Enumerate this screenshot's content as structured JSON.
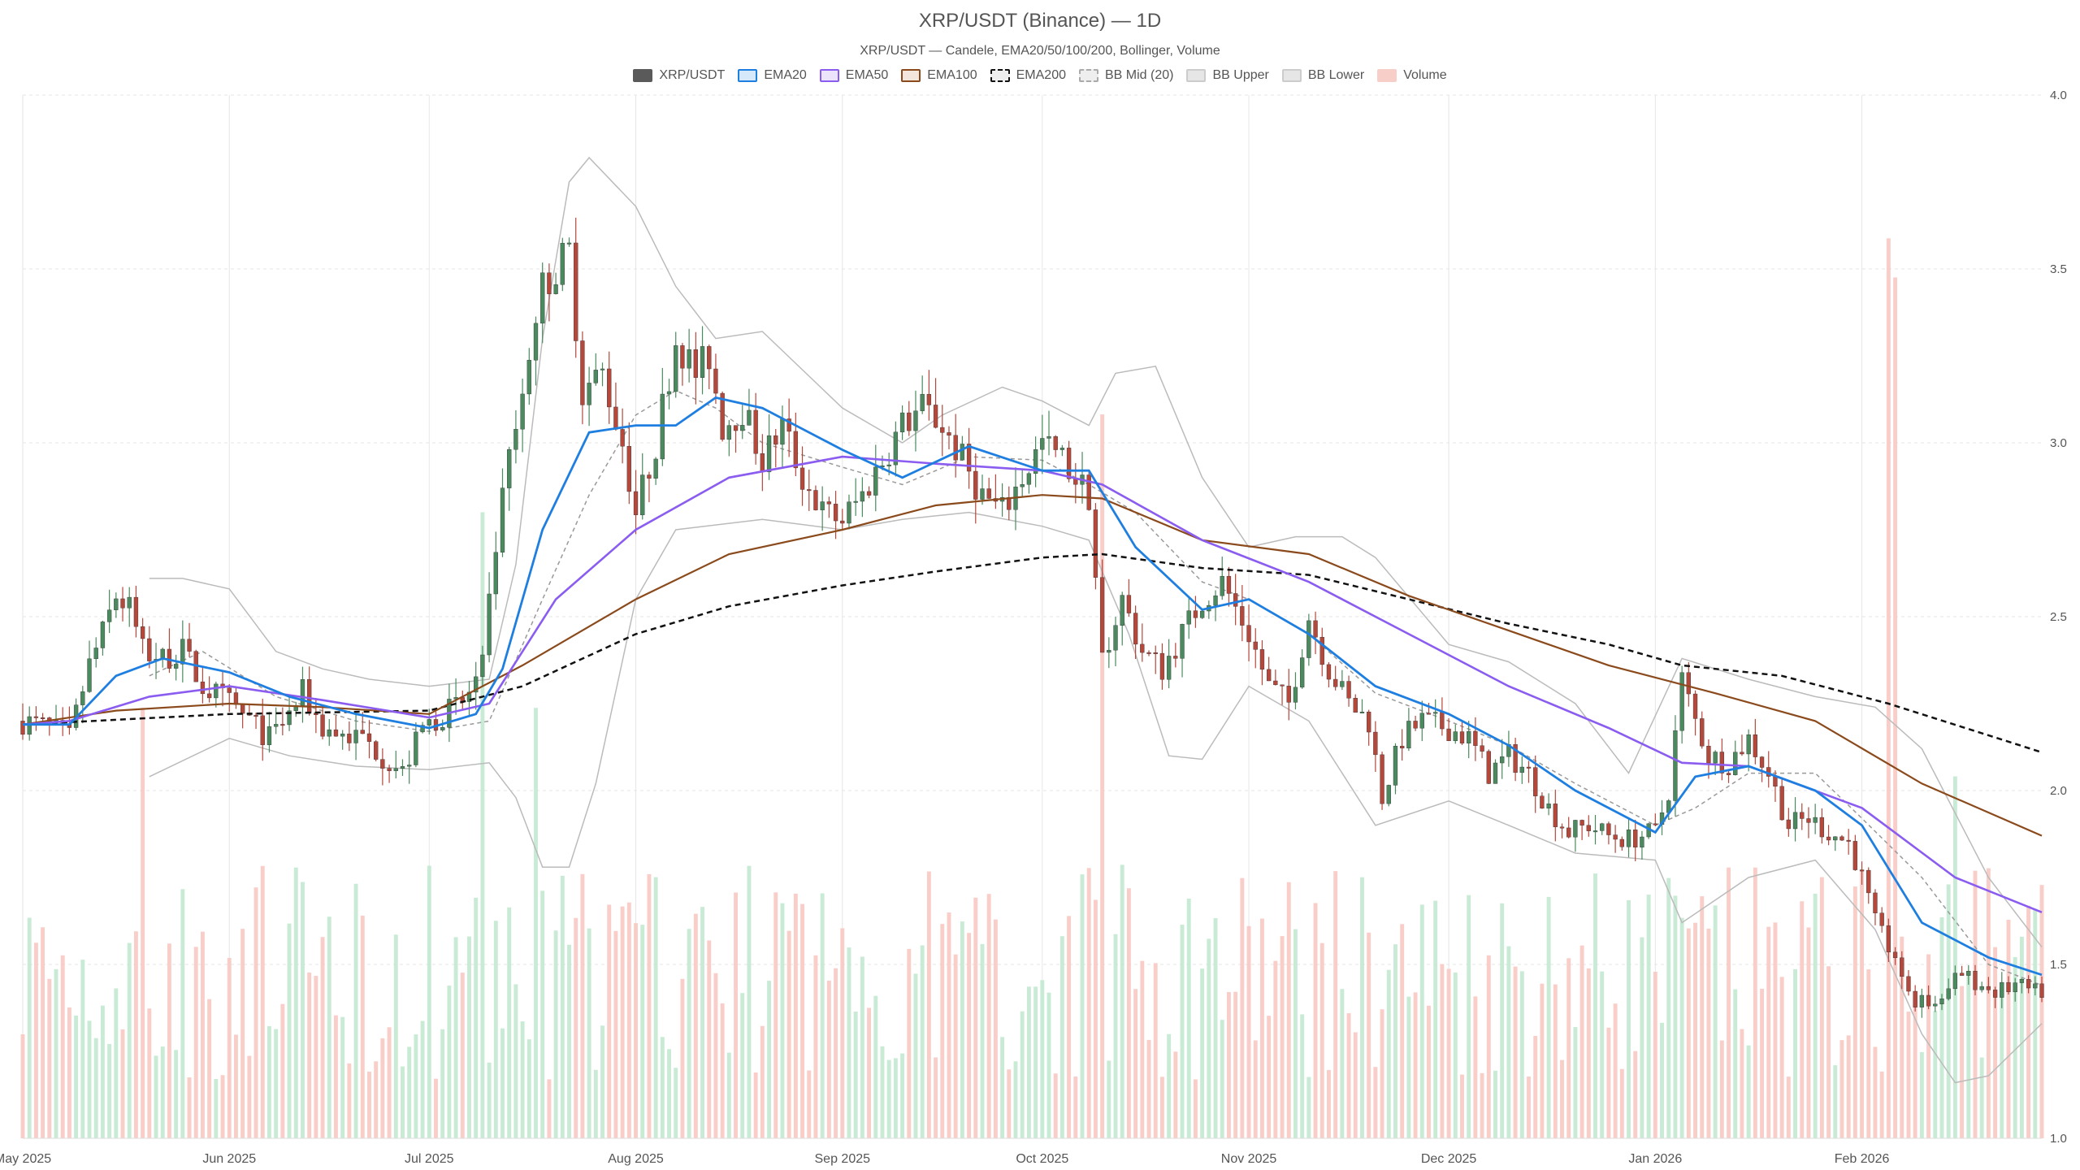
{
  "title": "XRP/USDT (Binance) — 1D",
  "subtitle": "XRP/USDT — Candele, EMA20/50/100/200, Bollinger, Volume",
  "legend": [
    {
      "label": "XRP/USDT",
      "fill": "#5a5a5a",
      "border": "#5a5a5a",
      "dashed": false
    },
    {
      "label": "EMA20",
      "fill": "#d6e9fb",
      "border": "#1f7fe0",
      "dashed": false
    },
    {
      "label": "EMA50",
      "fill": "#ece4fb",
      "border": "#8a5cf0",
      "dashed": false
    },
    {
      "label": "EMA100",
      "fill": "#f3e7dd",
      "border": "#8b4a1c",
      "dashed": false
    },
    {
      "label": "EMA200",
      "fill": "#eeeeee",
      "border": "#111111",
      "dashed": true
    },
    {
      "label": "BB Mid (20)",
      "fill": "#eeeeee",
      "border": "#aaaaaa",
      "dashed": true
    },
    {
      "label": "BB Upper",
      "fill": "#e6e6e6",
      "border": "#cccccc",
      "dashed": false
    },
    {
      "label": "BB Lower",
      "fill": "#e6e6e6",
      "border": "#cccccc",
      "dashed": false
    },
    {
      "label": "Volume",
      "fill": "#f8cfc8",
      "border": "#f8cfc8",
      "dashed": false
    }
  ],
  "chart_data": {
    "type": "candlestick",
    "x_range": [
      "2025-05-01",
      "2026-02-28"
    ],
    "x_tick_labels": [
      "May 2025",
      "Jun 2025",
      "Jul 2025",
      "Aug 2025",
      "Sep 2025",
      "Oct 2025",
      "Nov 2025",
      "Dec 2025",
      "Jan 2026",
      "Feb 2026"
    ],
    "x_tick_dates": [
      "2025-05-01",
      "2025-06-01",
      "2025-07-01",
      "2025-08-01",
      "2025-09-01",
      "2025-10-01",
      "2025-11-01",
      "2025-12-01",
      "2026-01-01",
      "2026-02-01"
    ],
    "ylim": [
      1.0,
      4.0
    ],
    "y_ticks": [
      "1.0",
      "1.5",
      "2.0",
      "2.5",
      "3.0",
      "3.5",
      "4.0"
    ],
    "y_axis_side": "right",
    "grid": true,
    "legend_position": "top-center",
    "colors": {
      "up": "#4a8a5e",
      "down": "#b5473b",
      "up_volume": "#bfe8cf",
      "down_volume": "#f8c6bf",
      "ema20": "#1f7fe0",
      "ema50": "#8a5cf0",
      "ema100": "#8b4a1c",
      "ema200": "#111111",
      "bb_mid": "#999999",
      "bb_band": "#bbbbbb"
    },
    "close_path": [
      [
        "2025-05-01",
        2.2
      ],
      [
        "2025-05-05",
        2.18
      ],
      [
        "2025-05-08",
        2.15
      ],
      [
        "2025-05-11",
        2.36
      ],
      [
        "2025-05-13",
        2.45
      ],
      [
        "2025-05-15",
        2.56
      ],
      [
        "2025-05-17",
        2.52
      ],
      [
        "2025-05-19",
        2.4
      ],
      [
        "2025-05-22",
        2.38
      ],
      [
        "2025-05-25",
        2.4
      ],
      [
        "2025-05-28",
        2.3
      ],
      [
        "2025-06-01",
        2.25
      ],
      [
        "2025-06-04",
        2.2
      ],
      [
        "2025-06-07",
        2.15
      ],
      [
        "2025-06-10",
        2.22
      ],
      [
        "2025-06-12",
        2.28
      ],
      [
        "2025-06-15",
        2.18
      ],
      [
        "2025-06-18",
        2.16
      ],
      [
        "2025-06-21",
        2.15
      ],
      [
        "2025-06-24",
        2.1
      ],
      [
        "2025-06-27",
        2.05
      ],
      [
        "2025-06-30",
        2.18
      ],
      [
        "2025-07-03",
        2.22
      ],
      [
        "2025-07-06",
        2.25
      ],
      [
        "2025-07-09",
        2.35
      ],
      [
        "2025-07-11",
        2.7
      ],
      [
        "2025-07-13",
        2.95
      ],
      [
        "2025-07-15",
        3.1
      ],
      [
        "2025-07-18",
        3.45
      ],
      [
        "2025-07-20",
        3.5
      ],
      [
        "2025-07-22",
        3.55
      ],
      [
        "2025-07-24",
        3.15
      ],
      [
        "2025-07-27",
        3.2
      ],
      [
        "2025-07-30",
        3.0
      ],
      [
        "2025-08-01",
        2.8
      ],
      [
        "2025-08-04",
        3.0
      ],
      [
        "2025-08-07",
        3.3
      ],
      [
        "2025-08-10",
        3.2
      ],
      [
        "2025-08-12",
        3.25
      ],
      [
        "2025-08-14",
        3.05
      ],
      [
        "2025-08-17",
        3.1
      ],
      [
        "2025-08-20",
        2.95
      ],
      [
        "2025-08-23",
        3.05
      ],
      [
        "2025-08-26",
        2.9
      ],
      [
        "2025-08-29",
        2.8
      ],
      [
        "2025-09-01",
        2.78
      ],
      [
        "2025-09-04",
        2.85
      ],
      [
        "2025-09-07",
        2.95
      ],
      [
        "2025-09-10",
        3.05
      ],
      [
        "2025-09-13",
        3.1
      ],
      [
        "2025-09-16",
        3.05
      ],
      [
        "2025-09-19",
        2.95
      ],
      [
        "2025-09-22",
        2.85
      ],
      [
        "2025-09-25",
        2.8
      ],
      [
        "2025-09-28",
        2.9
      ],
      [
        "2025-10-01",
        3.0
      ],
      [
        "2025-10-04",
        2.95
      ],
      [
        "2025-10-06",
        2.9
      ],
      [
        "2025-10-08",
        2.85
      ],
      [
        "2025-10-10",
        2.38
      ],
      [
        "2025-10-13",
        2.55
      ],
      [
        "2025-10-16",
        2.4
      ],
      [
        "2025-10-19",
        2.35
      ],
      [
        "2025-10-22",
        2.45
      ],
      [
        "2025-10-25",
        2.55
      ],
      [
        "2025-10-28",
        2.6
      ],
      [
        "2025-11-01",
        2.45
      ],
      [
        "2025-11-04",
        2.3
      ],
      [
        "2025-11-07",
        2.25
      ],
      [
        "2025-11-10",
        2.5
      ],
      [
        "2025-11-13",
        2.35
      ],
      [
        "2025-11-16",
        2.25
      ],
      [
        "2025-11-19",
        2.2
      ],
      [
        "2025-11-21",
        1.98
      ],
      [
        "2025-11-24",
        2.15
      ],
      [
        "2025-11-27",
        2.2
      ],
      [
        "2025-12-01",
        2.18
      ],
      [
        "2025-12-04",
        2.15
      ],
      [
        "2025-12-07",
        2.05
      ],
      [
        "2025-12-10",
        2.1
      ],
      [
        "2025-12-13",
        2.05
      ],
      [
        "2025-12-16",
        1.95
      ],
      [
        "2025-12-19",
        1.88
      ],
      [
        "2025-12-22",
        1.9
      ],
      [
        "2025-12-25",
        1.87
      ],
      [
        "2025-12-28",
        1.86
      ],
      [
        "2026-01-01",
        1.88
      ],
      [
        "2026-01-03",
        2.0
      ],
      [
        "2026-01-05",
        2.32
      ],
      [
        "2026-01-07",
        2.2
      ],
      [
        "2026-01-09",
        2.1
      ],
      [
        "2026-01-12",
        2.08
      ],
      [
        "2026-01-15",
        2.15
      ],
      [
        "2026-01-18",
        2.05
      ],
      [
        "2026-01-21",
        1.9
      ],
      [
        "2026-01-24",
        1.92
      ],
      [
        "2026-01-27",
        1.88
      ],
      [
        "2026-01-30",
        1.85
      ],
      [
        "2026-02-01",
        1.75
      ],
      [
        "2026-02-03",
        1.62
      ],
      [
        "2026-02-05",
        1.55
      ],
      [
        "2026-02-07",
        1.45
      ],
      [
        "2026-02-09",
        1.4
      ],
      [
        "2026-02-12",
        1.39
      ],
      [
        "2026-02-15",
        1.48
      ],
      [
        "2026-02-18",
        1.45
      ],
      [
        "2026-02-21",
        1.42
      ],
      [
        "2026-02-24",
        1.44
      ],
      [
        "2026-02-27",
        1.42
      ]
    ],
    "ema20": [
      [
        "2025-05-01",
        2.19
      ],
      [
        "2025-05-08",
        2.19
      ],
      [
        "2025-05-15",
        2.33
      ],
      [
        "2025-05-22",
        2.38
      ],
      [
        "2025-06-01",
        2.34
      ],
      [
        "2025-06-10",
        2.27
      ],
      [
        "2025-06-20",
        2.22
      ],
      [
        "2025-07-01",
        2.18
      ],
      [
        "2025-07-08",
        2.22
      ],
      [
        "2025-07-12",
        2.35
      ],
      [
        "2025-07-18",
        2.75
      ],
      [
        "2025-07-25",
        3.03
      ],
      [
        "2025-08-01",
        3.05
      ],
      [
        "2025-08-07",
        3.05
      ],
      [
        "2025-08-13",
        3.13
      ],
      [
        "2025-08-20",
        3.1
      ],
      [
        "2025-09-01",
        2.98
      ],
      [
        "2025-09-10",
        2.9
      ],
      [
        "2025-09-20",
        2.99
      ],
      [
        "2025-10-01",
        2.92
      ],
      [
        "2025-10-08",
        2.92
      ],
      [
        "2025-10-15",
        2.7
      ],
      [
        "2025-10-25",
        2.52
      ],
      [
        "2025-11-01",
        2.55
      ],
      [
        "2025-11-10",
        2.45
      ],
      [
        "2025-11-20",
        2.3
      ],
      [
        "2025-12-01",
        2.22
      ],
      [
        "2025-12-10",
        2.13
      ],
      [
        "2025-12-20",
        2.0
      ],
      [
        "2026-01-01",
        1.88
      ],
      [
        "2026-01-07",
        2.04
      ],
      [
        "2026-01-15",
        2.07
      ],
      [
        "2026-01-25",
        2.0
      ],
      [
        "2026-02-01",
        1.9
      ],
      [
        "2026-02-10",
        1.62
      ],
      [
        "2026-02-20",
        1.52
      ],
      [
        "2026-02-28",
        1.47
      ]
    ],
    "ema50": [
      [
        "2025-05-01",
        2.19
      ],
      [
        "2025-05-08",
        2.2
      ],
      [
        "2025-05-20",
        2.27
      ],
      [
        "2025-06-01",
        2.3
      ],
      [
        "2025-06-15",
        2.26
      ],
      [
        "2025-07-01",
        2.21
      ],
      [
        "2025-07-10",
        2.25
      ],
      [
        "2025-07-20",
        2.55
      ],
      [
        "2025-08-01",
        2.75
      ],
      [
        "2025-08-15",
        2.9
      ],
      [
        "2025-09-01",
        2.96
      ],
      [
        "2025-09-15",
        2.94
      ],
      [
        "2025-10-01",
        2.92
      ],
      [
        "2025-10-10",
        2.88
      ],
      [
        "2025-10-25",
        2.72
      ],
      [
        "2025-11-10",
        2.6
      ],
      [
        "2025-11-25",
        2.45
      ],
      [
        "2025-12-10",
        2.3
      ],
      [
        "2025-12-25",
        2.18
      ],
      [
        "2026-01-05",
        2.08
      ],
      [
        "2026-01-15",
        2.07
      ],
      [
        "2026-02-01",
        1.95
      ],
      [
        "2026-02-15",
        1.75
      ],
      [
        "2026-02-28",
        1.65
      ]
    ],
    "ema100": [
      [
        "2025-05-01",
        2.19
      ],
      [
        "2025-05-15",
        2.23
      ],
      [
        "2025-06-01",
        2.25
      ],
      [
        "2025-06-15",
        2.24
      ],
      [
        "2025-07-01",
        2.22
      ],
      [
        "2025-07-15",
        2.36
      ],
      [
        "2025-08-01",
        2.55
      ],
      [
        "2025-08-15",
        2.68
      ],
      [
        "2025-09-01",
        2.75
      ],
      [
        "2025-09-15",
        2.82
      ],
      [
        "2025-10-01",
        2.85
      ],
      [
        "2025-10-10",
        2.84
      ],
      [
        "2025-10-25",
        2.72
      ],
      [
        "2025-11-10",
        2.68
      ],
      [
        "2025-11-25",
        2.56
      ],
      [
        "2025-12-10",
        2.46
      ],
      [
        "2025-12-25",
        2.36
      ],
      [
        "2026-01-10",
        2.28
      ],
      [
        "2026-01-25",
        2.2
      ],
      [
        "2026-02-10",
        2.02
      ],
      [
        "2026-02-28",
        1.87
      ]
    ],
    "ema200": [
      [
        "2025-05-01",
        2.19
      ],
      [
        "2025-06-01",
        2.22
      ],
      [
        "2025-07-01",
        2.23
      ],
      [
        "2025-07-15",
        2.3
      ],
      [
        "2025-08-01",
        2.45
      ],
      [
        "2025-08-15",
        2.53
      ],
      [
        "2025-09-01",
        2.59
      ],
      [
        "2025-09-15",
        2.63
      ],
      [
        "2025-10-01",
        2.67
      ],
      [
        "2025-10-10",
        2.68
      ],
      [
        "2025-10-25",
        2.64
      ],
      [
        "2025-11-10",
        2.62
      ],
      [
        "2025-11-25",
        2.55
      ],
      [
        "2025-12-10",
        2.48
      ],
      [
        "2025-12-25",
        2.42
      ],
      [
        "2026-01-05",
        2.36
      ],
      [
        "2026-01-20",
        2.33
      ],
      [
        "2026-02-05",
        2.25
      ],
      [
        "2026-02-28",
        2.11
      ]
    ],
    "bb_upper": [
      [
        "2025-05-20",
        2.61
      ],
      [
        "2025-05-25",
        2.61
      ],
      [
        "2025-06-01",
        2.58
      ],
      [
        "2025-06-08",
        2.4
      ],
      [
        "2025-06-15",
        2.35
      ],
      [
        "2025-06-22",
        2.32
      ],
      [
        "2025-07-01",
        2.3
      ],
      [
        "2025-07-10",
        2.32
      ],
      [
        "2025-07-14",
        2.65
      ],
      [
        "2025-07-18",
        3.3
      ],
      [
        "2025-07-22",
        3.75
      ],
      [
        "2025-07-25",
        3.82
      ],
      [
        "2025-08-01",
        3.68
      ],
      [
        "2025-08-07",
        3.45
      ],
      [
        "2025-08-13",
        3.3
      ],
      [
        "2025-08-20",
        3.32
      ],
      [
        "2025-09-01",
        3.1
      ],
      [
        "2025-09-10",
        3.0
      ],
      [
        "2025-09-16",
        3.08
      ],
      [
        "2025-09-25",
        3.16
      ],
      [
        "2025-10-01",
        3.12
      ],
      [
        "2025-10-08",
        3.05
      ],
      [
        "2025-10-12",
        3.2
      ],
      [
        "2025-10-18",
        3.22
      ],
      [
        "2025-10-25",
        2.9
      ],
      [
        "2025-11-01",
        2.7
      ],
      [
        "2025-11-08",
        2.73
      ],
      [
        "2025-11-15",
        2.73
      ],
      [
        "2025-11-20",
        2.67
      ],
      [
        "2025-12-01",
        2.42
      ],
      [
        "2025-12-10",
        2.37
      ],
      [
        "2025-12-20",
        2.25
      ],
      [
        "2025-12-28",
        2.05
      ],
      [
        "2026-01-05",
        2.38
      ],
      [
        "2026-01-15",
        2.32
      ],
      [
        "2026-01-25",
        2.27
      ],
      [
        "2026-02-03",
        2.24
      ],
      [
        "2026-02-10",
        2.12
      ],
      [
        "2026-02-20",
        1.75
      ],
      [
        "2026-02-28",
        1.55
      ]
    ],
    "bb_lower": [
      [
        "2025-05-20",
        2.04
      ],
      [
        "2025-06-01",
        2.15
      ],
      [
        "2025-06-10",
        2.1
      ],
      [
        "2025-06-20",
        2.07
      ],
      [
        "2025-07-01",
        2.06
      ],
      [
        "2025-07-10",
        2.08
      ],
      [
        "2025-07-14",
        1.98
      ],
      [
        "2025-07-18",
        1.78
      ],
      [
        "2025-07-22",
        1.78
      ],
      [
        "2025-07-26",
        2.02
      ],
      [
        "2025-08-01",
        2.55
      ],
      [
        "2025-08-07",
        2.75
      ],
      [
        "2025-08-20",
        2.78
      ],
      [
        "2025-09-01",
        2.75
      ],
      [
        "2025-09-10",
        2.78
      ],
      [
        "2025-09-20",
        2.8
      ],
      [
        "2025-10-01",
        2.76
      ],
      [
        "2025-10-08",
        2.72
      ],
      [
        "2025-10-14",
        2.45
      ],
      [
        "2025-10-20",
        2.1
      ],
      [
        "2025-10-25",
        2.09
      ],
      [
        "2025-11-01",
        2.3
      ],
      [
        "2025-11-10",
        2.2
      ],
      [
        "2025-11-20",
        1.9
      ],
      [
        "2025-12-01",
        1.97
      ],
      [
        "2025-12-10",
        1.9
      ],
      [
        "2025-12-20",
        1.82
      ],
      [
        "2026-01-01",
        1.8
      ],
      [
        "2026-01-05",
        1.62
      ],
      [
        "2026-01-15",
        1.75
      ],
      [
        "2026-01-25",
        1.8
      ],
      [
        "2026-02-03",
        1.6
      ],
      [
        "2026-02-10",
        1.3
      ],
      [
        "2026-02-15",
        1.16
      ],
      [
        "2026-02-20",
        1.18
      ],
      [
        "2026-02-28",
        1.33
      ]
    ],
    "bb_mid": [
      [
        "2025-05-20",
        2.33
      ],
      [
        "2025-05-28",
        2.4
      ],
      [
        "2025-06-08",
        2.27
      ],
      [
        "2025-06-20",
        2.2
      ],
      [
        "2025-07-01",
        2.17
      ],
      [
        "2025-07-10",
        2.2
      ],
      [
        "2025-07-18",
        2.55
      ],
      [
        "2025-07-25",
        2.85
      ],
      [
        "2025-08-01",
        3.08
      ],
      [
        "2025-08-07",
        3.15
      ],
      [
        "2025-08-13",
        3.1
      ],
      [
        "2025-08-20",
        3.0
      ],
      [
        "2025-09-01",
        2.93
      ],
      [
        "2025-09-10",
        2.88
      ],
      [
        "2025-09-20",
        2.96
      ],
      [
        "2025-10-01",
        2.95
      ],
      [
        "2025-10-08",
        2.88
      ],
      [
        "2025-10-15",
        2.8
      ],
      [
        "2025-10-25",
        2.6
      ],
      [
        "2025-11-01",
        2.55
      ],
      [
        "2025-11-10",
        2.45
      ],
      [
        "2025-11-20",
        2.28
      ],
      [
        "2025-12-01",
        2.2
      ],
      [
        "2025-12-10",
        2.13
      ],
      [
        "2025-12-20",
        2.02
      ],
      [
        "2026-01-01",
        1.9
      ],
      [
        "2026-01-07",
        1.95
      ],
      [
        "2026-01-15",
        2.05
      ],
      [
        "2026-01-25",
        2.05
      ],
      [
        "2026-02-01",
        1.92
      ],
      [
        "2026-02-10",
        1.75
      ],
      [
        "2026-02-20",
        1.5
      ],
      [
        "2026-02-28",
        1.44
      ]
    ],
    "volume_spikes": [
      [
        "2025-05-19",
        0.44
      ],
      [
        "2025-07-09",
        0.64
      ],
      [
        "2025-07-17",
        0.44
      ],
      [
        "2025-10-10",
        0.74
      ],
      [
        "2026-02-05",
        0.92
      ],
      [
        "2026-02-06",
        0.88
      ],
      [
        "2026-02-15",
        0.37
      ]
    ]
  }
}
